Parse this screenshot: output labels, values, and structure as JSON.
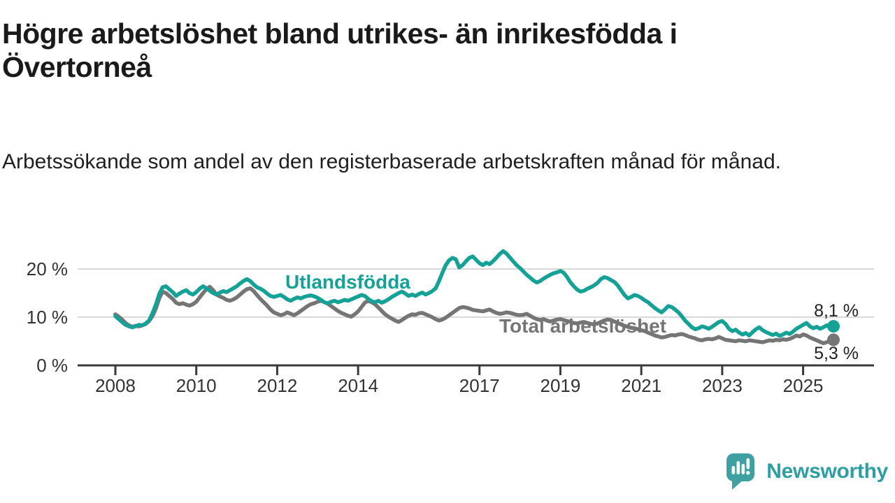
{
  "header": {
    "title": "Högre arbetslöshet bland utrikes- än inrikesfödda i Övertorneå",
    "subtitle": "Arbetssökande som andel av den registerbaserade arbetskraften månad för månad."
  },
  "footer": {
    "brand": "Newsworthy",
    "logo_icon": "speech-bubble-bar-chart-icon"
  },
  "colors": {
    "series_foreign_born": "#15a195",
    "series_total": "#757575",
    "axis": "#3a3a3a",
    "gridline": "#d9d9d9",
    "tick_text": "#333333",
    "annotation_text": "#222222",
    "title_text": "#1a1a1a",
    "logo_teal": "#3fa0a2"
  },
  "chart_data": {
    "type": "line",
    "unit": "%",
    "x_start": "2008-01",
    "x_end": "2025-10",
    "x_interval": "monthly",
    "grid": "horizontal-only",
    "legend_position": "inline-labels",
    "ylim": [
      0,
      24
    ],
    "x_ticks": [
      {
        "year": 2008,
        "label": "2008"
      },
      {
        "year": 2010,
        "label": "2010"
      },
      {
        "year": 2012,
        "label": "2012"
      },
      {
        "year": 2014,
        "label": "2014"
      },
      {
        "year": 2017,
        "label": "2017"
      },
      {
        "year": 2019,
        "label": "2019"
      },
      {
        "year": 2021,
        "label": "2021"
      },
      {
        "year": 2023,
        "label": "2023"
      },
      {
        "year": 2025,
        "label": "2025"
      }
    ],
    "y_ticks": [
      {
        "value": 0,
        "label": "0 %"
      },
      {
        "value": 10,
        "label": "10 %"
      },
      {
        "value": 20,
        "label": "20 %"
      }
    ],
    "series": [
      {
        "id": "utlandsfodda",
        "name": "Utlandsfödda",
        "color": "#15a195",
        "end_value": 8.1,
        "end_label": "8,1 %",
        "values": [
          10.2,
          9.6,
          9.0,
          8.4,
          8.1,
          7.9,
          8.1,
          8.4,
          8.3,
          8.7,
          9.3,
          10.8,
          12.6,
          14.8,
          16.2,
          16.4,
          15.8,
          15.2,
          14.4,
          14.9,
          15.3,
          15.6,
          15.0,
          14.7,
          15.2,
          15.9,
          16.4,
          16.0,
          15.5,
          15.0,
          14.7,
          15.1,
          15.4,
          15.2,
          15.6,
          16.0,
          16.4,
          17.0,
          17.5,
          17.9,
          17.5,
          16.8,
          16.2,
          15.9,
          15.5,
          14.9,
          14.4,
          14.2,
          14.4,
          14.6,
          14.2,
          13.7,
          13.4,
          13.8,
          14.1,
          13.9,
          14.2,
          14.4,
          14.5,
          14.3,
          14.0,
          13.6,
          13.1,
          12.9,
          13.2,
          13.4,
          13.1,
          13.3,
          13.6,
          13.4,
          13.7,
          14.0,
          14.3,
          14.6,
          14.4,
          13.8,
          13.3,
          13.1,
          13.4,
          13.0,
          13.3,
          13.7,
          14.2,
          14.6,
          15.0,
          15.3,
          14.9,
          14.4,
          14.7,
          14.4,
          14.8,
          15.1,
          14.7,
          15.0,
          15.4,
          16.0,
          17.5,
          19.2,
          20.8,
          21.8,
          22.3,
          22.0,
          20.3,
          20.8,
          21.6,
          22.3,
          22.6,
          21.9,
          21.2,
          20.8,
          21.3,
          21.0,
          21.6,
          22.3,
          23.1,
          23.7,
          23.2,
          22.4,
          21.6,
          20.8,
          20.2,
          19.5,
          18.8,
          18.2,
          17.6,
          17.2,
          17.5,
          18.0,
          18.4,
          18.8,
          19.1,
          19.3,
          19.6,
          19.2,
          18.3,
          17.2,
          16.4,
          15.7,
          15.3,
          15.5,
          15.9,
          16.2,
          16.6,
          17.1,
          17.9,
          18.3,
          18.1,
          17.7,
          17.3,
          16.6,
          15.6,
          14.6,
          13.9,
          14.2,
          14.6,
          14.4,
          14.0,
          13.5,
          13.1,
          12.5,
          11.9,
          11.4,
          11.0,
          11.6,
          12.3,
          12.1,
          11.6,
          11.0,
          10.2,
          9.3,
          8.6,
          7.9,
          7.5,
          7.7,
          8.1,
          7.9,
          7.6,
          8.0,
          8.5,
          9.0,
          9.2,
          8.6,
          7.6,
          7.1,
          7.4,
          6.8,
          6.4,
          6.7,
          6.2,
          6.9,
          7.5,
          7.9,
          7.3,
          6.9,
          6.6,
          6.3,
          6.6,
          6.1,
          6.4,
          6.8,
          6.5,
          7.0,
          7.6,
          8.0,
          8.4,
          8.8,
          8.1,
          7.7,
          8.0,
          7.6,
          7.9,
          8.3,
          7.8,
          8.1
        ]
      },
      {
        "id": "total",
        "name": "Total arbetslöshet",
        "color": "#757575",
        "end_value": 5.3,
        "end_label": "5,3 %",
        "values": [
          10.6,
          10.1,
          9.5,
          8.8,
          8.3,
          8.0,
          8.2,
          8.1,
          8.3,
          8.6,
          9.2,
          10.2,
          11.8,
          13.9,
          15.3,
          15.0,
          14.4,
          13.8,
          13.0,
          12.7,
          12.9,
          12.6,
          12.4,
          12.7,
          13.2,
          14.1,
          15.0,
          15.8,
          16.3,
          15.6,
          14.7,
          14.3,
          14.0,
          13.6,
          13.4,
          13.7,
          14.1,
          14.7,
          15.3,
          15.8,
          16.0,
          15.4,
          14.6,
          13.8,
          13.1,
          12.4,
          11.6,
          11.0,
          10.7,
          10.4,
          10.6,
          11.0,
          10.7,
          10.4,
          10.8,
          11.3,
          11.8,
          12.3,
          12.7,
          12.9,
          13.2,
          13.4,
          13.1,
          12.8,
          12.3,
          11.8,
          11.3,
          10.9,
          10.6,
          10.3,
          10.1,
          10.6,
          11.2,
          12.1,
          13.0,
          13.4,
          13.1,
          12.7,
          12.0,
          11.3,
          10.6,
          10.1,
          9.7,
          9.3,
          9.0,
          9.4,
          9.9,
          10.3,
          10.6,
          10.5,
          10.8,
          10.9,
          10.6,
          10.3,
          10.0,
          9.6,
          9.3,
          9.5,
          9.9,
          10.4,
          10.9,
          11.4,
          11.9,
          12.1,
          12.0,
          11.8,
          11.5,
          11.4,
          11.3,
          11.2,
          11.4,
          11.6,
          11.2,
          10.9,
          10.7,
          10.8,
          11.0,
          10.9,
          10.7,
          10.5,
          10.4,
          10.5,
          10.7,
          10.3,
          9.9,
          9.6,
          9.4,
          9.6,
          9.3,
          9.1,
          9.3,
          9.5,
          9.6,
          9.4,
          9.2,
          9.0,
          8.8,
          8.7,
          8.9,
          9.0,
          8.8,
          8.6,
          8.5,
          8.7,
          9.0,
          9.3,
          9.5,
          9.4,
          9.1,
          8.8,
          8.5,
          8.2,
          8.0,
          7.8,
          7.7,
          7.5,
          7.3,
          7.1,
          6.8,
          6.5,
          6.2,
          6.0,
          5.8,
          5.9,
          6.1,
          6.3,
          6.2,
          6.4,
          6.5,
          6.3,
          6.0,
          5.8,
          5.6,
          5.3,
          5.2,
          5.4,
          5.5,
          5.4,
          5.6,
          5.9,
          5.6,
          5.3,
          5.2,
          5.1,
          5.0,
          5.2,
          5.1,
          5.0,
          5.2,
          5.1,
          5.0,
          4.9,
          4.8,
          5.0,
          5.2,
          5.1,
          5.3,
          5.2,
          5.4,
          5.3,
          5.5,
          5.8,
          6.2,
          6.0,
          6.4,
          6.2,
          5.8,
          5.5,
          5.2,
          4.9,
          4.6,
          4.8,
          5.1,
          5.3
        ]
      }
    ]
  }
}
